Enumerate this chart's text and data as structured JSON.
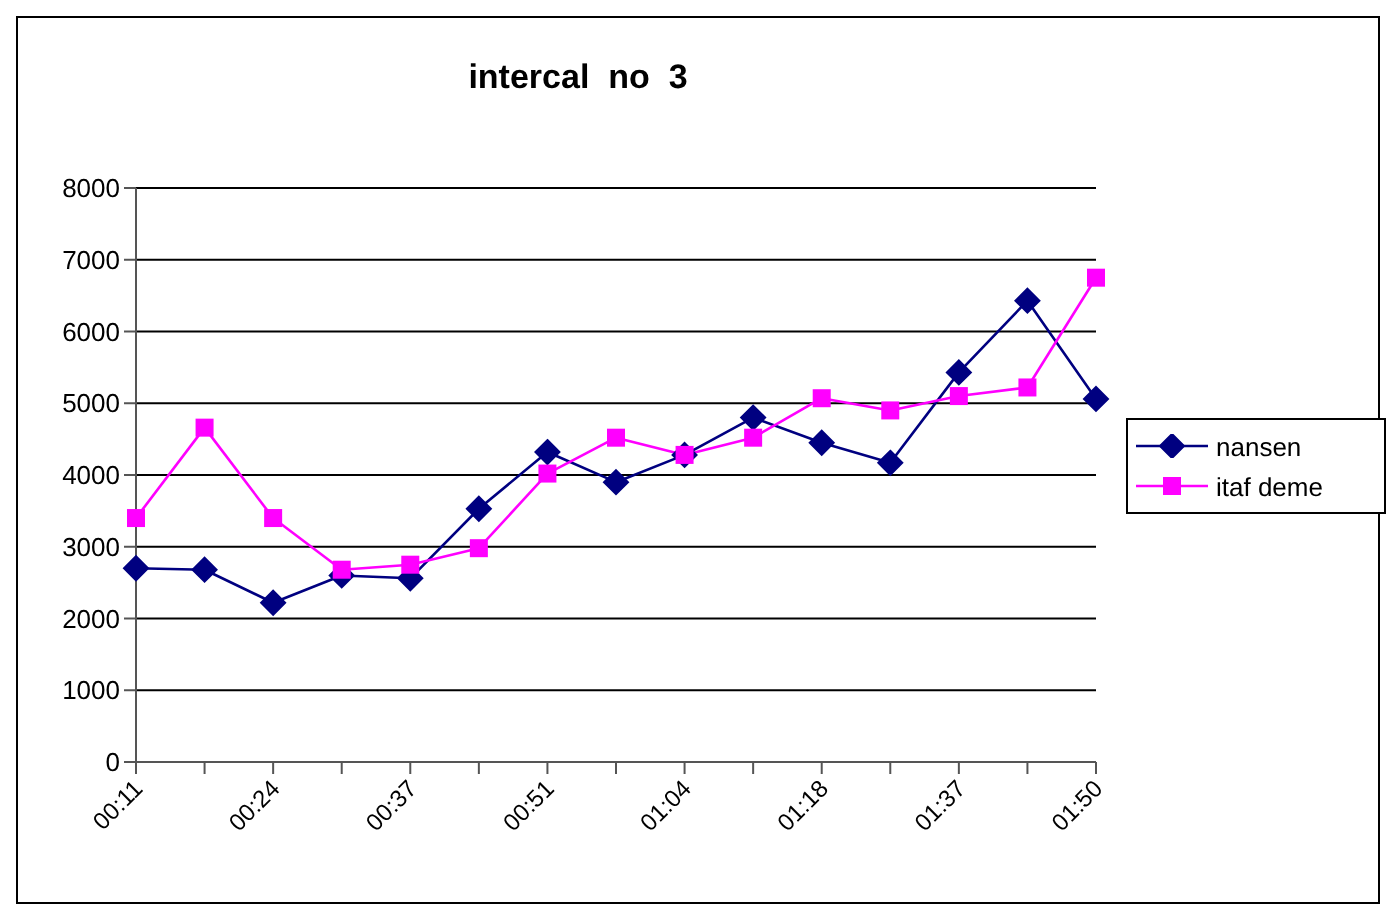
{
  "chart_data": {
    "type": "line",
    "title": "intercal  no  3",
    "categories": [
      "00:11",
      null,
      "00:24",
      null,
      "00:37",
      null,
      "00:51",
      null,
      "01:04",
      null,
      "01:18",
      null,
      "01:37",
      null,
      "01:50"
    ],
    "series": [
      {
        "name": "nansen",
        "color": "#000080",
        "marker": "diamond",
        "values": [
          2700,
          2680,
          2220,
          2600,
          2560,
          3530,
          4320,
          3900,
          4280,
          4800,
          4450,
          4170,
          5430,
          6430,
          5060
        ]
      },
      {
        "name": "itaf deme",
        "color": "#ff00ff",
        "marker": "square",
        "values": [
          3400,
          4660,
          3400,
          2680,
          2750,
          2980,
          4020,
          4520,
          4280,
          4520,
          5070,
          4900,
          5100,
          5220,
          6750
        ]
      }
    ],
    "ylim": [
      0,
      8000
    ],
    "yticks": [
      0,
      1000,
      2000,
      3000,
      4000,
      5000,
      6000,
      7000,
      8000
    ],
    "grid": "y",
    "legend": "right"
  }
}
